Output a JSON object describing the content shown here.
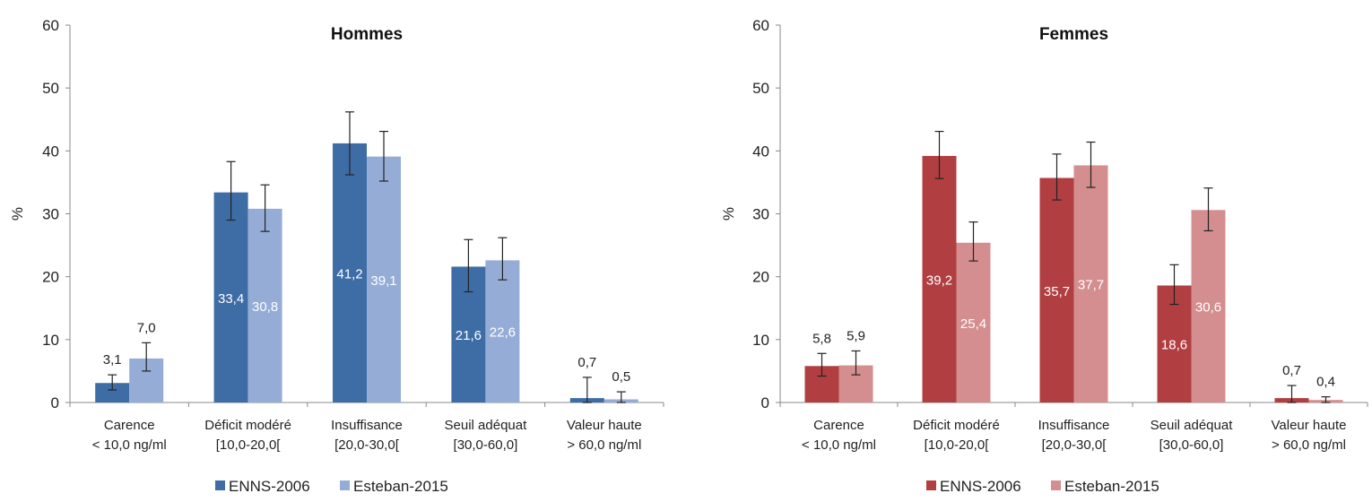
{
  "chart_data": [
    {
      "type": "bar",
      "title": "Hommes",
      "ylabel": "%",
      "ylim": [
        0,
        60
      ],
      "yticks": [
        "0",
        "10",
        "20",
        "30",
        "40",
        "50",
        "60"
      ],
      "categories": [
        [
          "Carence",
          "< 10,0 ng/ml"
        ],
        [
          "Déficit modéré",
          "[10,0-20,0["
        ],
        [
          "Insuffisance",
          "[20,0-30,0["
        ],
        [
          "Seuil adéquat",
          "[30,0-60,0]"
        ],
        [
          "Valeur haute",
          "> 60,0 ng/ml"
        ]
      ],
      "series": [
        {
          "name": "ENNS-2006",
          "color": "#3e6da6",
          "values": [
            3.1,
            33.4,
            41.2,
            21.6,
            0.7
          ],
          "labels": [
            "3,1",
            "33,4",
            "41,2",
            "21,6",
            "0,7"
          ],
          "err_low": [
            2.0,
            29.0,
            36.2,
            17.6,
            0.0
          ],
          "err_high": [
            4.4,
            38.3,
            46.2,
            25.9,
            4.0
          ]
        },
        {
          "name": "Esteban-2015",
          "color": "#95add6",
          "values": [
            7.0,
            30.8,
            39.1,
            22.6,
            0.5
          ],
          "labels": [
            "7,0",
            "30,8",
            "39,1",
            "22,6",
            "0,5"
          ],
          "err_low": [
            5.0,
            27.2,
            35.2,
            19.5,
            0.0
          ],
          "err_high": [
            9.5,
            34.6,
            43.1,
            26.2,
            1.7
          ]
        }
      ],
      "legend": "bottom"
    },
    {
      "type": "bar",
      "title": "Femmes",
      "ylabel": "%",
      "ylim": [
        0,
        60
      ],
      "yticks": [
        "0",
        "10",
        "20",
        "30",
        "40",
        "50",
        "60"
      ],
      "categories": [
        [
          "Carence",
          "< 10,0 ng/ml"
        ],
        [
          "Déficit modéré",
          "[10,0-20,0["
        ],
        [
          "Insuffisance",
          "[20,0-30,0["
        ],
        [
          "Seuil adéquat",
          "[30,0-60,0]"
        ],
        [
          "Valeur haute",
          "> 60,0 ng/ml"
        ]
      ],
      "series": [
        {
          "name": "ENNS-2006",
          "color": "#b13f42",
          "values": [
            5.8,
            39.2,
            35.7,
            18.6,
            0.7
          ],
          "labels": [
            "5,8",
            "39,2",
            "35,7",
            "18,6",
            "0,7"
          ],
          "err_low": [
            4.2,
            35.6,
            32.2,
            15.6,
            0.0
          ],
          "err_high": [
            7.8,
            43.1,
            39.5,
            21.9,
            2.7
          ]
        },
        {
          "name": "Esteban-2015",
          "color": "#d58e8f",
          "values": [
            5.9,
            25.4,
            37.7,
            30.6,
            0.4
          ],
          "labels": [
            "5,9",
            "25,4",
            "37,7",
            "30,6",
            "0,4"
          ],
          "err_low": [
            4.4,
            22.5,
            34.2,
            27.3,
            0.0
          ],
          "err_high": [
            8.2,
            28.7,
            41.4,
            34.1,
            0.9
          ]
        }
      ],
      "legend": "bottom"
    }
  ]
}
